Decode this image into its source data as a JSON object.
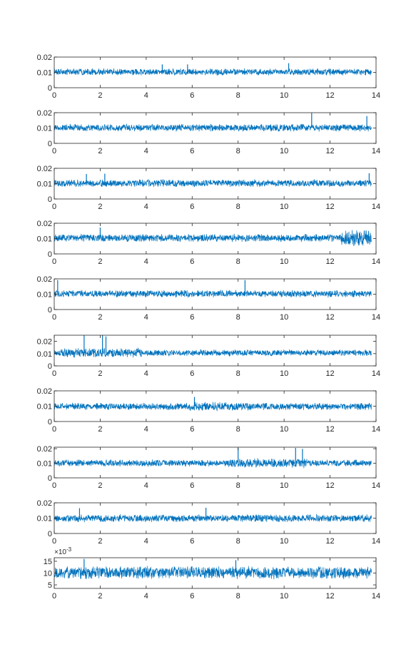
{
  "chart_data": [
    {
      "type": "line",
      "xlim": [
        0,
        14
      ],
      "ylim": [
        0,
        0.02
      ],
      "x_ticks": [
        "0",
        "2",
        "4",
        "6",
        "8",
        "10",
        "12",
        "14"
      ],
      "y_ticks": [
        "0",
        "0.01",
        "0.02"
      ],
      "exponent": "",
      "series_color": "#0072BD",
      "signal": {
        "x_start": 0,
        "x_end": 13.8,
        "base": 0.0103,
        "amplitude": 0.0024,
        "spikes": [
          {
            "x": 4.7,
            "y": 0.0152
          },
          {
            "x": 5.8,
            "y": 0.0152
          },
          {
            "x": 10.2,
            "y": 0.016
          }
        ],
        "bursts": []
      }
    },
    {
      "type": "line",
      "xlim": [
        0,
        14
      ],
      "ylim": [
        0,
        0.02
      ],
      "x_ticks": [
        "0",
        "2",
        "4",
        "6",
        "8",
        "10",
        "12",
        "14"
      ],
      "y_ticks": [
        "0",
        "0.01",
        "0.02"
      ],
      "exponent": "",
      "series_color": "#0072BD",
      "signal": {
        "x_start": 0,
        "x_end": 13.8,
        "base": 0.0102,
        "amplitude": 0.0026,
        "spikes": [
          {
            "x": 11.2,
            "y": 0.0198
          },
          {
            "x": 13.6,
            "y": 0.0178
          }
        ],
        "bursts": []
      }
    },
    {
      "type": "line",
      "xlim": [
        0,
        14
      ],
      "ylim": [
        0,
        0.02
      ],
      "x_ticks": [
        "0",
        "2",
        "4",
        "6",
        "8",
        "10",
        "12",
        "14"
      ],
      "y_ticks": [
        "0",
        "0.01",
        "0.02"
      ],
      "exponent": "",
      "series_color": "#0072BD",
      "signal": {
        "x_start": 0,
        "x_end": 13.8,
        "base": 0.0103,
        "amplitude": 0.0026,
        "spikes": [
          {
            "x": 1.4,
            "y": 0.0163
          },
          {
            "x": 2.2,
            "y": 0.0165
          },
          {
            "x": 13.7,
            "y": 0.0168
          }
        ],
        "bursts": []
      }
    },
    {
      "type": "line",
      "xlim": [
        0,
        14
      ],
      "ylim": [
        0,
        0.02
      ],
      "x_ticks": [
        "0",
        "2",
        "4",
        "6",
        "8",
        "10",
        "12",
        "14"
      ],
      "y_ticks": [
        "0",
        "0.01",
        "0.02"
      ],
      "exponent": "",
      "series_color": "#0072BD",
      "signal": {
        "x_start": 0,
        "x_end": 13.8,
        "base": 0.0104,
        "amplitude": 0.0027,
        "spikes": [
          {
            "x": 2.0,
            "y": 0.0172
          }
        ],
        "bursts": [
          {
            "x_start": 12.5,
            "x_end": 13.8,
            "amplitude": 0.0058
          }
        ]
      }
    },
    {
      "type": "line",
      "xlim": [
        0,
        14
      ],
      "ylim": [
        0,
        0.02
      ],
      "x_ticks": [
        "0",
        "2",
        "4",
        "6",
        "8",
        "10",
        "12",
        "14"
      ],
      "y_ticks": [
        "0",
        "0.01",
        "0.02"
      ],
      "exponent": "",
      "series_color": "#0072BD",
      "signal": {
        "x_start": 0,
        "x_end": 13.8,
        "base": 0.0103,
        "amplitude": 0.0025,
        "spikes": [
          {
            "x": 0.15,
            "y": 0.0192
          },
          {
            "x": 8.3,
            "y": 0.0192
          }
        ],
        "bursts": []
      }
    },
    {
      "type": "line",
      "xlim": [
        0,
        14
      ],
      "ylim": [
        0,
        0.025
      ],
      "x_ticks": [
        "0",
        "2",
        "4",
        "6",
        "8",
        "10",
        "12",
        "14"
      ],
      "y_ticks": [
        "0",
        "0.01",
        "0.02"
      ],
      "exponent": "",
      "series_color": "#0072BD",
      "signal": {
        "x_start": 0,
        "x_end": 13.8,
        "base": 0.0107,
        "amplitude": 0.0028,
        "spikes": [
          {
            "x": 1.3,
            "y": 0.025
          },
          {
            "x": 2.1,
            "y": 0.025
          },
          {
            "x": 2.25,
            "y": 0.024
          }
        ],
        "bursts": [
          {
            "x_start": 0.2,
            "x_end": 3.8,
            "amplitude": 0.0042
          }
        ]
      }
    },
    {
      "type": "line",
      "xlim": [
        0,
        14
      ],
      "ylim": [
        0,
        0.02
      ],
      "x_ticks": [
        "0",
        "2",
        "4",
        "6",
        "8",
        "10",
        "12",
        "14"
      ],
      "y_ticks": [
        "0",
        "0.01",
        "0.02"
      ],
      "exponent": "",
      "series_color": "#0072BD",
      "signal": {
        "x_start": 0,
        "x_end": 13.8,
        "base": 0.0098,
        "amplitude": 0.0025,
        "spikes": [
          {
            "x": 6.1,
            "y": 0.016
          }
        ],
        "bursts": [
          {
            "x_start": 5.7,
            "x_end": 8.5,
            "amplitude": 0.0033
          }
        ]
      }
    },
    {
      "type": "line",
      "xlim": [
        0,
        14
      ],
      "ylim": [
        0,
        0.021
      ],
      "x_ticks": [
        "0",
        "2",
        "4",
        "6",
        "8",
        "10",
        "12",
        "14"
      ],
      "y_ticks": [
        "0",
        "0.01",
        "0.02"
      ],
      "exponent": "",
      "series_color": "#0072BD",
      "signal": {
        "x_start": 0,
        "x_end": 13.8,
        "base": 0.0101,
        "amplitude": 0.0025,
        "spikes": [
          {
            "x": 8.0,
            "y": 0.0205
          },
          {
            "x": 10.5,
            "y": 0.0205
          },
          {
            "x": 10.8,
            "y": 0.0198
          }
        ],
        "bursts": [
          {
            "x_start": 7.5,
            "x_end": 11.0,
            "amplitude": 0.0036
          }
        ]
      }
    },
    {
      "type": "line",
      "xlim": [
        0,
        14
      ],
      "ylim": [
        0,
        0.02
      ],
      "x_ticks": [
        "0",
        "2",
        "4",
        "6",
        "8",
        "10",
        "12",
        "14"
      ],
      "y_ticks": [
        "0",
        "0.01",
        "0.02"
      ],
      "exponent": "",
      "series_color": "#0072BD",
      "signal": {
        "x_start": 0,
        "x_end": 13.8,
        "base": 0.0099,
        "amplitude": 0.0026,
        "spikes": [
          {
            "x": 1.1,
            "y": 0.0165
          },
          {
            "x": 6.6,
            "y": 0.0168
          }
        ],
        "bursts": []
      }
    },
    {
      "type": "line",
      "xlim": [
        0,
        14
      ],
      "ylim": [
        3.5,
        16.5
      ],
      "x_ticks": [
        "0",
        "2",
        "4",
        "6",
        "8",
        "10",
        "12",
        "14"
      ],
      "y_ticks": [
        "5",
        "10",
        "15"
      ],
      "exponent": "×10",
      "exponent_power": "-3",
      "series_color": "#0072BD",
      "signal": {
        "x_start": 0,
        "x_end": 13.8,
        "base": 10.2,
        "amplitude": 2.9,
        "spikes": [
          {
            "x": 1.3,
            "y": 16.0
          },
          {
            "x": 7.9,
            "y": 15.5
          }
        ],
        "bursts": []
      }
    }
  ]
}
